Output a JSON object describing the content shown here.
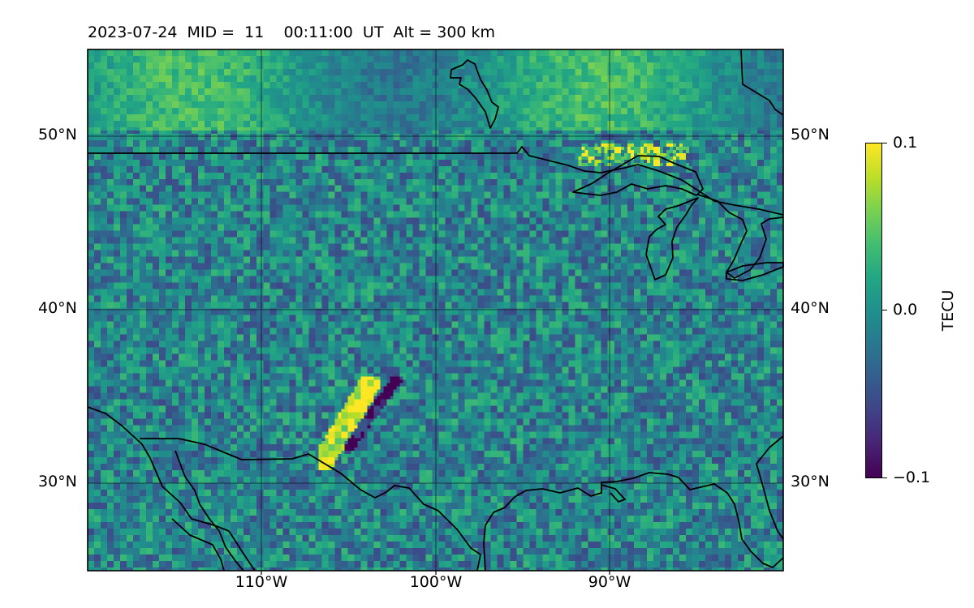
{
  "title": "2023-07-24  MID =  11    00:11:00  UT  Alt = 300 km",
  "map": {
    "projection": "PlateCarree",
    "lon_range": [
      -120,
      -80
    ],
    "lat_range": [
      25,
      55
    ],
    "gridlines": true,
    "coastlines": true,
    "lat_tick_labels": [
      "50°N",
      "40°N",
      "30°N"
    ],
    "lon_tick_labels": [
      "110°W",
      "100°W",
      "90°W"
    ],
    "lat_ticks": [
      50,
      40,
      30
    ],
    "lon_ticks": [
      -110,
      -100,
      -90
    ]
  },
  "colorbar": {
    "label": "TECU",
    "colormap": "viridis",
    "vmin": -0.1,
    "vmax": 0.1,
    "tick_labels": [
      "0.1",
      "0.0",
      "−0.1"
    ]
  },
  "colors": {
    "viridis_low": "#440154",
    "viridis_mid": "#21918c",
    "viridis_high": "#fde725",
    "coastline": "#000000"
  }
}
